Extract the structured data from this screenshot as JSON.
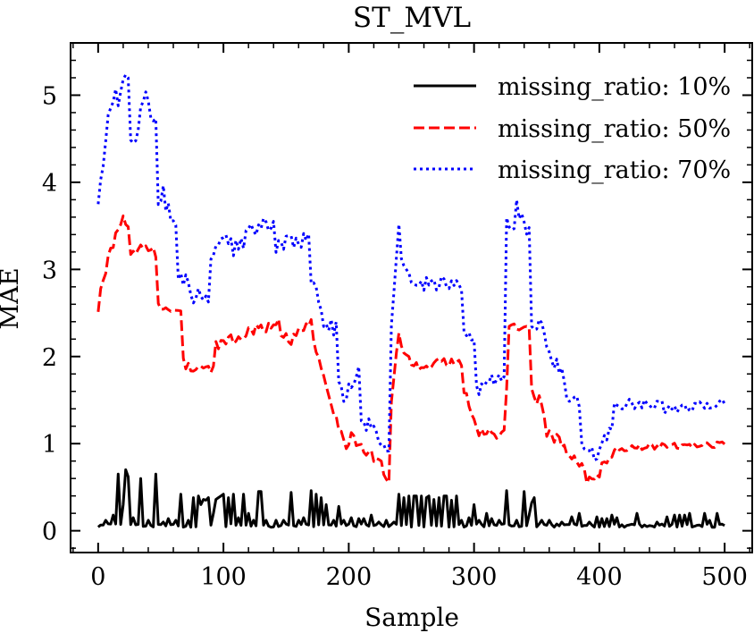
{
  "chart_data": {
    "type": "line",
    "title": "ST_MVL",
    "xlabel": "Sample",
    "ylabel": "MAE",
    "xlim": [
      -22,
      522
    ],
    "ylim": [
      -0.25,
      5.6
    ],
    "xticks": [
      0,
      100,
      200,
      300,
      400,
      500
    ],
    "yticks": [
      0,
      1,
      2,
      3,
      4,
      5
    ],
    "x_tick_labels": [
      "0",
      "100",
      "200",
      "300",
      "400",
      "500"
    ],
    "y_tick_labels": [
      "0",
      "1",
      "2",
      "3",
      "4",
      "5"
    ],
    "grid": false,
    "legend_position": "top-right",
    "x_sample_step": 2,
    "series": [
      {
        "name": "missing_ratio: 10%",
        "color": "#000000",
        "linestyle": "solid",
        "segments": [
          {
            "from": 0,
            "to": 500,
            "start": 0.06,
            "end": 0.06,
            "noise": 0.02
          }
        ],
        "spikes": [
          [
            6,
            0.12
          ],
          [
            12,
            0.18
          ],
          [
            16,
            0.65
          ],
          [
            20,
            0.3
          ],
          [
            22,
            0.7
          ],
          [
            24,
            0.62
          ],
          [
            28,
            0.15
          ],
          [
            34,
            0.6
          ],
          [
            40,
            0.12
          ],
          [
            46,
            0.65
          ],
          [
            52,
            0.1
          ],
          [
            56,
            0.14
          ],
          [
            62,
            0.12
          ],
          [
            66,
            0.42
          ],
          [
            72,
            0.12
          ],
          [
            76,
            0.38
          ],
          [
            80,
            0.4
          ],
          [
            82,
            0.3
          ],
          [
            84,
            0.36
          ],
          [
            86,
            0.35
          ],
          [
            88,
            0.38
          ],
          [
            92,
            0.2
          ],
          [
            94,
            0.36
          ],
          [
            96,
            0.38
          ],
          [
            98,
            0.4
          ],
          [
            100,
            0.42
          ],
          [
            104,
            0.38
          ],
          [
            108,
            0.42
          ],
          [
            112,
            0.15
          ],
          [
            116,
            0.42
          ],
          [
            120,
            0.2
          ],
          [
            124,
            0.12
          ],
          [
            128,
            0.45
          ],
          [
            130,
            0.45
          ],
          [
            134,
            0.12
          ],
          [
            142,
            0.12
          ],
          [
            148,
            0.12
          ],
          [
            154,
            0.44
          ],
          [
            160,
            0.12
          ],
          [
            164,
            0.15
          ],
          [
            170,
            0.46
          ],
          [
            174,
            0.42
          ],
          [
            178,
            0.38
          ],
          [
            182,
            0.3
          ],
          [
            188,
            0.12
          ],
          [
            192,
            0.28
          ],
          [
            196,
            0.12
          ],
          [
            202,
            0.15
          ],
          [
            208,
            0.14
          ],
          [
            212,
            0.14
          ],
          [
            218,
            0.18
          ],
          [
            224,
            0.1
          ],
          [
            230,
            0.12
          ],
          [
            236,
            0.1
          ],
          [
            240,
            0.42
          ],
          [
            244,
            0.38
          ],
          [
            248,
            0.4
          ],
          [
            252,
            0.4
          ],
          [
            254,
            0.4
          ],
          [
            258,
            0.4
          ],
          [
            262,
            0.38
          ],
          [
            264,
            0.4
          ],
          [
            268,
            0.36
          ],
          [
            272,
            0.38
          ],
          [
            276,
            0.4
          ],
          [
            278,
            0.4
          ],
          [
            282,
            0.35
          ],
          [
            286,
            0.4
          ],
          [
            290,
            0.12
          ],
          [
            296,
            0.15
          ],
          [
            300,
            0.3
          ],
          [
            304,
            0.12
          ],
          [
            310,
            0.2
          ],
          [
            314,
            0.14
          ],
          [
            320,
            0.12
          ],
          [
            326,
            0.46
          ],
          [
            334,
            0.12
          ],
          [
            340,
            0.45
          ],
          [
            344,
            0.18
          ],
          [
            346,
            0.32
          ],
          [
            348,
            0.38
          ],
          [
            354,
            0.12
          ],
          [
            360,
            0.12
          ],
          [
            370,
            0.1
          ],
          [
            378,
            0.16
          ],
          [
            384,
            0.2
          ],
          [
            392,
            0.1
          ],
          [
            398,
            0.16
          ],
          [
            402,
            0.14
          ],
          [
            406,
            0.14
          ],
          [
            410,
            0.18
          ],
          [
            414,
            0.15
          ],
          [
            430,
            0.2
          ],
          [
            446,
            0.1
          ],
          [
            454,
            0.16
          ],
          [
            460,
            0.18
          ],
          [
            464,
            0.18
          ],
          [
            468,
            0.18
          ],
          [
            472,
            0.2
          ],
          [
            484,
            0.2
          ],
          [
            488,
            0.12
          ],
          [
            494,
            0.2
          ],
          [
            500,
            0.06
          ]
        ]
      },
      {
        "name": "missing_ratio: 50%",
        "color": "#ff0000",
        "linestyle": "dashed",
        "segments": [
          {
            "from": 0,
            "to": 2,
            "start": 2.55,
            "end": 2.8,
            "noise": 0.05
          },
          {
            "from": 2,
            "to": 12,
            "start": 2.8,
            "end": 3.3,
            "noise": 0.06
          },
          {
            "from": 12,
            "to": 20,
            "start": 3.3,
            "end": 3.55,
            "noise": 0.08
          },
          {
            "from": 20,
            "to": 24,
            "start": 3.58,
            "end": 3.45,
            "noise": 0.06
          },
          {
            "from": 24,
            "to": 45,
            "start": 3.15,
            "end": 3.3,
            "noise": 0.07
          },
          {
            "from": 45,
            "to": 48,
            "start": 3.45,
            "end": 2.6,
            "noise": 0.05
          },
          {
            "from": 48,
            "to": 66,
            "start": 2.55,
            "end": 2.5,
            "noise": 0.05
          },
          {
            "from": 66,
            "to": 70,
            "start": 2.2,
            "end": 1.85,
            "noise": 0.05
          },
          {
            "from": 70,
            "to": 92,
            "start": 1.9,
            "end": 1.85,
            "noise": 0.06
          },
          {
            "from": 92,
            "to": 130,
            "start": 2.1,
            "end": 2.35,
            "noise": 0.06
          },
          {
            "from": 130,
            "to": 145,
            "start": 2.3,
            "end": 2.45,
            "noise": 0.06
          },
          {
            "from": 145,
            "to": 155,
            "start": 2.3,
            "end": 2.15,
            "noise": 0.05
          },
          {
            "from": 155,
            "to": 170,
            "start": 2.2,
            "end": 2.4,
            "noise": 0.06
          },
          {
            "from": 170,
            "to": 180,
            "start": 2.3,
            "end": 1.8,
            "noise": 0.06
          },
          {
            "from": 180,
            "to": 190,
            "start": 1.75,
            "end": 1.3,
            "noise": 0.06
          },
          {
            "from": 190,
            "to": 200,
            "start": 1.2,
            "end": 0.95,
            "noise": 0.06
          },
          {
            "from": 200,
            "to": 215,
            "start": 1.1,
            "end": 0.85,
            "noise": 0.08
          },
          {
            "from": 215,
            "to": 226,
            "start": 0.9,
            "end": 0.8,
            "noise": 0.06
          },
          {
            "from": 226,
            "to": 232,
            "start": 0.7,
            "end": 0.56,
            "noise": 0.03
          },
          {
            "from": 232,
            "to": 240,
            "start": 1.2,
            "end": 2.3,
            "noise": 0.04
          },
          {
            "from": 240,
            "to": 250,
            "start": 2.1,
            "end": 1.95,
            "noise": 0.06
          },
          {
            "from": 250,
            "to": 290,
            "start": 1.9,
            "end": 1.95,
            "noise": 0.06
          },
          {
            "from": 290,
            "to": 300,
            "start": 1.7,
            "end": 1.3,
            "noise": 0.05
          },
          {
            "from": 300,
            "to": 324,
            "start": 1.15,
            "end": 1.1,
            "noise": 0.06
          },
          {
            "from": 324,
            "to": 328,
            "start": 0.95,
            "end": 2.35,
            "noise": 0.02
          },
          {
            "from": 328,
            "to": 344,
            "start": 2.35,
            "end": 2.3,
            "noise": 0.05
          },
          {
            "from": 344,
            "to": 350,
            "start": 1.6,
            "end": 1.5,
            "noise": 0.08
          },
          {
            "from": 350,
            "to": 356,
            "start": 1.6,
            "end": 1.3,
            "noise": 0.06
          },
          {
            "from": 356,
            "to": 372,
            "start": 1.15,
            "end": 1.0,
            "noise": 0.07
          },
          {
            "from": 372,
            "to": 388,
            "start": 0.9,
            "end": 0.75,
            "noise": 0.05
          },
          {
            "from": 388,
            "to": 400,
            "start": 0.57,
            "end": 0.65,
            "noise": 0.04
          },
          {
            "from": 400,
            "to": 412,
            "start": 0.75,
            "end": 0.9,
            "noise": 0.05
          },
          {
            "from": 412,
            "to": 500,
            "start": 0.95,
            "end": 1.0,
            "noise": 0.04
          }
        ]
      },
      {
        "name": "missing_ratio: 70%",
        "color": "#0000ff",
        "linestyle": "dotted",
        "segments": [
          {
            "from": 0,
            "to": 5,
            "start": 3.8,
            "end": 4.2,
            "noise": 0.08
          },
          {
            "from": 5,
            "to": 14,
            "start": 4.5,
            "end": 5.0,
            "noise": 0.12
          },
          {
            "from": 14,
            "to": 24,
            "start": 4.9,
            "end": 5.25,
            "noise": 0.1
          },
          {
            "from": 24,
            "to": 32,
            "start": 4.5,
            "end": 4.6,
            "noise": 0.12
          },
          {
            "from": 32,
            "to": 40,
            "start": 4.7,
            "end": 5.0,
            "noise": 0.12
          },
          {
            "from": 40,
            "to": 46,
            "start": 4.7,
            "end": 4.75,
            "noise": 0.08
          },
          {
            "from": 46,
            "to": 52,
            "start": 3.7,
            "end": 3.9,
            "noise": 0.1
          },
          {
            "from": 52,
            "to": 62,
            "start": 3.8,
            "end": 3.5,
            "noise": 0.1
          },
          {
            "from": 62,
            "to": 74,
            "start": 3.0,
            "end": 2.8,
            "noise": 0.1
          },
          {
            "from": 74,
            "to": 88,
            "start": 2.7,
            "end": 2.7,
            "noise": 0.1
          },
          {
            "from": 88,
            "to": 102,
            "start": 3.0,
            "end": 3.4,
            "noise": 0.1
          },
          {
            "from": 102,
            "to": 140,
            "start": 3.2,
            "end": 3.6,
            "noise": 0.12
          },
          {
            "from": 140,
            "to": 168,
            "start": 3.3,
            "end": 3.3,
            "noise": 0.12
          },
          {
            "from": 168,
            "to": 176,
            "start": 3.0,
            "end": 2.7,
            "noise": 0.1
          },
          {
            "from": 176,
            "to": 190,
            "start": 2.5,
            "end": 2.3,
            "noise": 0.1
          },
          {
            "from": 190,
            "to": 198,
            "start": 1.7,
            "end": 1.5,
            "noise": 0.1
          },
          {
            "from": 198,
            "to": 208,
            "start": 1.6,
            "end": 1.8,
            "noise": 0.1
          },
          {
            "from": 208,
            "to": 222,
            "start": 1.2,
            "end": 1.2,
            "noise": 0.1
          },
          {
            "from": 222,
            "to": 232,
            "start": 1.1,
            "end": 0.9,
            "noise": 0.08
          },
          {
            "from": 232,
            "to": 240,
            "start": 2.0,
            "end": 3.5,
            "noise": 0.06
          },
          {
            "from": 240,
            "to": 250,
            "start": 3.2,
            "end": 2.9,
            "noise": 0.08
          },
          {
            "from": 250,
            "to": 290,
            "start": 2.8,
            "end": 2.85,
            "noise": 0.1
          },
          {
            "from": 290,
            "to": 300,
            "start": 2.4,
            "end": 2.1,
            "noise": 0.1
          },
          {
            "from": 300,
            "to": 310,
            "start": 1.6,
            "end": 1.7,
            "noise": 0.1
          },
          {
            "from": 310,
            "to": 324,
            "start": 1.75,
            "end": 1.7,
            "noise": 0.08
          },
          {
            "from": 324,
            "to": 332,
            "start": 3.6,
            "end": 3.5,
            "noise": 0.08
          },
          {
            "from": 332,
            "to": 344,
            "start": 3.7,
            "end": 3.4,
            "noise": 0.15
          },
          {
            "from": 344,
            "to": 356,
            "start": 2.4,
            "end": 2.3,
            "noise": 0.12
          },
          {
            "from": 356,
            "to": 372,
            "start": 2.1,
            "end": 1.8,
            "noise": 0.1
          },
          {
            "from": 372,
            "to": 385,
            "start": 1.6,
            "end": 1.4,
            "noise": 0.1
          },
          {
            "from": 385,
            "to": 398,
            "start": 0.95,
            "end": 0.85,
            "noise": 0.08
          },
          {
            "from": 398,
            "to": 410,
            "start": 0.95,
            "end": 1.2,
            "noise": 0.08
          },
          {
            "from": 410,
            "to": 450,
            "start": 1.45,
            "end": 1.45,
            "noise": 0.06
          },
          {
            "from": 450,
            "to": 470,
            "start": 1.4,
            "end": 1.4,
            "noise": 0.06
          },
          {
            "from": 470,
            "to": 500,
            "start": 1.4,
            "end": 1.5,
            "noise": 0.06
          }
        ]
      }
    ]
  }
}
